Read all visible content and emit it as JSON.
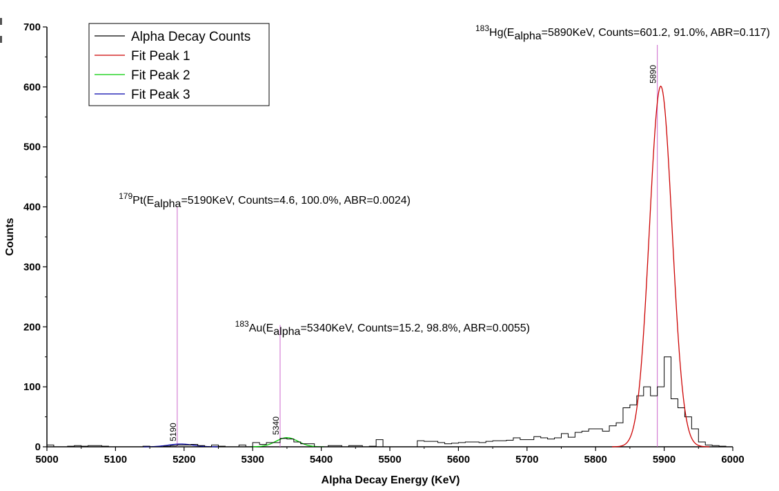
{
  "colors": {
    "counts": "#000000",
    "fit1": "#cc0000",
    "fit2": "#00cc00",
    "fit3": "#0000aa",
    "marker": "#cc66cc"
  },
  "chart_data": {
    "type": "line",
    "xlabel": "Alpha Decay Energy (KeV)",
    "ylabel": "Counts",
    "xlim": [
      5000,
      6000
    ],
    "ylim": [
      0,
      700
    ],
    "xticks": [
      5000,
      5100,
      5200,
      5300,
      5400,
      5500,
      5600,
      5700,
      5800,
      5900,
      6000
    ],
    "yticks": [
      0,
      100,
      200,
      300,
      400,
      500,
      600,
      700
    ],
    "legend": {
      "position": "top-left",
      "entries": [
        "Alpha Decay Counts",
        "Fit Peak 1",
        "Fit Peak 2",
        "Fit Peak 3"
      ]
    },
    "histogram": {
      "name": "Alpha Decay Counts",
      "bin_width": 10,
      "x": [
        5000,
        5010,
        5020,
        5030,
        5040,
        5050,
        5060,
        5070,
        5080,
        5090,
        5100,
        5110,
        5120,
        5130,
        5140,
        5150,
        5160,
        5170,
        5180,
        5190,
        5200,
        5210,
        5220,
        5230,
        5240,
        5250,
        5260,
        5270,
        5280,
        5290,
        5300,
        5310,
        5320,
        5330,
        5340,
        5350,
        5360,
        5370,
        5380,
        5390,
        5400,
        5410,
        5420,
        5430,
        5440,
        5450,
        5460,
        5470,
        5480,
        5490,
        5500,
        5510,
        5520,
        5530,
        5540,
        5550,
        5560,
        5570,
        5580,
        5590,
        5600,
        5610,
        5620,
        5630,
        5640,
        5650,
        5660,
        5670,
        5680,
        5690,
        5700,
        5710,
        5720,
        5730,
        5740,
        5750,
        5760,
        5770,
        5780,
        5790,
        5800,
        5810,
        5820,
        5830,
        5840,
        5850,
        5860,
        5870,
        5880,
        5890,
        5900,
        5910,
        5920,
        5930,
        5940,
        5950,
        5960,
        5970,
        5980,
        5990
      ],
      "values": [
        3,
        0,
        0,
        1,
        2,
        1,
        2,
        2,
        1,
        0,
        0,
        0,
        0,
        0,
        1,
        0,
        0,
        1,
        2,
        3,
        3,
        4,
        2,
        0,
        3,
        1,
        0,
        0,
        3,
        0,
        7,
        4,
        7,
        7,
        14,
        13,
        8,
        5,
        5,
        0,
        0,
        2,
        2,
        0,
        2,
        2,
        0,
        1,
        12,
        0,
        0,
        0,
        0,
        0,
        10,
        9,
        9,
        7,
        5,
        6,
        7,
        8,
        8,
        7,
        9,
        10,
        10,
        11,
        15,
        12,
        12,
        17,
        15,
        13,
        15,
        22,
        16,
        24,
        26,
        30,
        30,
        26,
        35,
        40,
        65,
        70,
        85,
        100,
        85,
        100,
        150,
        80,
        65,
        50,
        30,
        8,
        3,
        2,
        1,
        0
      ]
    },
    "fits": [
      {
        "name": "Fit Peak 1",
        "center": 5895,
        "amplitude": 601.2,
        "sigma": 16.5
      },
      {
        "name": "Fit Peak 2",
        "center": 5350,
        "amplitude": 15.2,
        "sigma": 16
      },
      {
        "name": "Fit Peak 3",
        "center": 5195,
        "amplitude": 4.6,
        "sigma": 18
      }
    ],
    "peaks": [
      {
        "energy": 5890,
        "label": "5890",
        "line_top": 670,
        "anno": {
          "sup": "183",
          "text1": "Hg(E",
          "sub": "alpha",
          "text2": "=5890KeV, Counts=601.2, 91.0%, ABR=0.117)"
        }
      },
      {
        "energy": 5340,
        "label": "5340",
        "line_top": 203,
        "anno": {
          "sup": "183",
          "text1": "Au(E",
          "sub": "alpha",
          "text2": "=5340KeV, Counts=15.2, 98.8%, ABR=0.0055)"
        }
      },
      {
        "energy": 5190,
        "label": "5190",
        "line_top": 400,
        "anno": {
          "sup": "179",
          "text1": "Pt(E",
          "sub": "alpha",
          "text2": "=5190KeV, Counts=4.6, 100.0%, ABR=0.0024)"
        }
      }
    ]
  }
}
